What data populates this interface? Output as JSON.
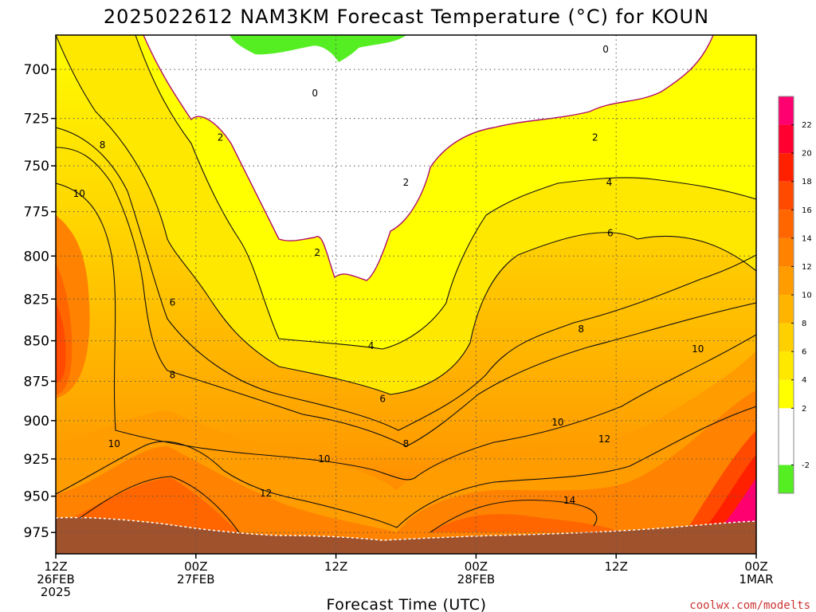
{
  "chart_data": {
    "type": "heatmap",
    "title": "2025022612 NAM3KM Forecast Temperature (°C) for KOUN",
    "xlabel": "Forecast Time (UTC)",
    "ylabel": "",
    "credit": "coolwx.com/modelts",
    "x_hours_range": [
      0,
      60
    ],
    "y_range": [
      990,
      683
    ],
    "y_scale": "log-pressure",
    "y_ticks": [
      700,
      725,
      750,
      775,
      800,
      825,
      850,
      875,
      900,
      925,
      950,
      975
    ],
    "x_ticks": [
      {
        "hour": 0,
        "lines": [
          "12Z",
          "26FEB",
          "2025"
        ]
      },
      {
        "hour": 12,
        "lines": [
          "00Z",
          "27FEB"
        ]
      },
      {
        "hour": 24,
        "lines": [
          "12Z"
        ]
      },
      {
        "hour": 36,
        "lines": [
          "00Z",
          "28FEB"
        ]
      },
      {
        "hour": 48,
        "lines": [
          "12Z"
        ]
      },
      {
        "hour": 60,
        "lines": [
          "00Z",
          "1MAR"
        ]
      }
    ],
    "grid": true,
    "colorbar": {
      "placement": "right",
      "ticks": [
        -2,
        2,
        4,
        6,
        8,
        10,
        12,
        14,
        16,
        18,
        20,
        22
      ],
      "bins": [
        {
          "from": -4,
          "to": -2,
          "color": "#55ee22"
        },
        {
          "from": -2,
          "to": 2,
          "color": "#ffffff"
        },
        {
          "from": 2,
          "to": 4,
          "color": "#ffff00"
        },
        {
          "from": 4,
          "to": 6,
          "color": "#ffe800"
        },
        {
          "from": 6,
          "to": 8,
          "color": "#ffd000"
        },
        {
          "from": 8,
          "to": 10,
          "color": "#ffb400"
        },
        {
          "from": 10,
          "to": 12,
          "color": "#ff9c00"
        },
        {
          "from": 12,
          "to": 14,
          "color": "#ff8200"
        },
        {
          "from": 14,
          "to": 16,
          "color": "#ff6600"
        },
        {
          "from": 16,
          "to": 18,
          "color": "#ff4a00"
        },
        {
          "from": 18,
          "to": 20,
          "color": "#ff2000"
        },
        {
          "from": 20,
          "to": 22,
          "color": "#ff0030"
        },
        {
          "from": 22,
          "to": 24,
          "color": "#ff0070"
        }
      ]
    },
    "ground_color": "#a0522d",
    "contour_labels": [
      {
        "value": "0",
        "hour": 22.2,
        "p": 712
      },
      {
        "value": "0",
        "hour": 47.1,
        "p": 690
      },
      {
        "value": "2",
        "hour": 14.1,
        "p": 735
      },
      {
        "value": "2",
        "hour": 30.0,
        "p": 759
      },
      {
        "value": "2",
        "hour": 22.4,
        "p": 798
      },
      {
        "value": "2",
        "hour": 46.2,
        "p": 735
      },
      {
        "value": "4",
        "hour": 27.0,
        "p": 853
      },
      {
        "value": "4",
        "hour": 47.4,
        "p": 759
      },
      {
        "value": "6",
        "hour": 10.0,
        "p": 827
      },
      {
        "value": "6",
        "hour": 28.0,
        "p": 886
      },
      {
        "value": "6",
        "hour": 47.5,
        "p": 787
      },
      {
        "value": "8",
        "hour": 4.0,
        "p": 739
      },
      {
        "value": "8",
        "hour": 10.0,
        "p": 871
      },
      {
        "value": "8",
        "hour": 30.0,
        "p": 915
      },
      {
        "value": "8",
        "hour": 45.0,
        "p": 843
      },
      {
        "value": "10",
        "hour": 2.0,
        "p": 765
      },
      {
        "value": "10",
        "hour": 5.0,
        "p": 915
      },
      {
        "value": "10",
        "hour": 23.0,
        "p": 925
      },
      {
        "value": "10",
        "hour": 43.0,
        "p": 901
      },
      {
        "value": "10",
        "hour": 55.0,
        "p": 855
      },
      {
        "value": "12",
        "hour": 18.0,
        "p": 948
      },
      {
        "value": "12",
        "hour": 47.0,
        "p": 912
      },
      {
        "value": "14",
        "hour": 44.0,
        "p": 953
      }
    ]
  }
}
